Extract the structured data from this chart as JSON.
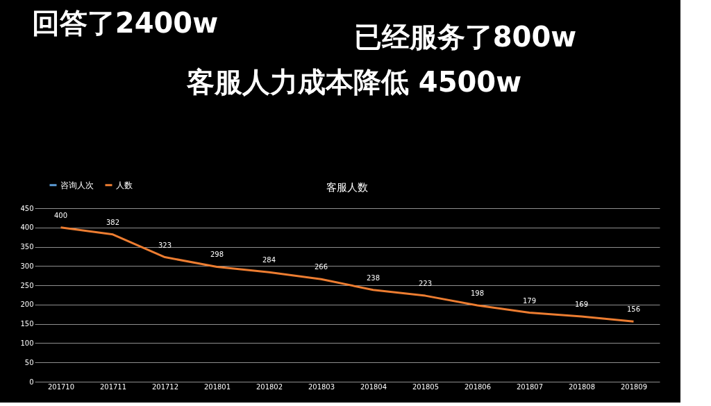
{
  "chart_data": {
    "type": "line",
    "title": "客服人数",
    "annotations": [
      "回答了2400w",
      "已经服务了800w",
      "客服人力成本降低 4500w"
    ],
    "categories": [
      "201710",
      "201711",
      "201712",
      "201801",
      "201802",
      "201803",
      "201804",
      "201805",
      "201806",
      "201807",
      "201808",
      "201809"
    ],
    "series": [
      {
        "name": "咨询人次",
        "color": "#5b9bd5",
        "values": [
          null,
          null,
          null,
          null,
          null,
          null,
          null,
          null,
          null,
          null,
          null,
          null
        ]
      },
      {
        "name": "人数",
        "color": "#ed7d31",
        "values": [
          400,
          382,
          323,
          298,
          284,
          266,
          238,
          223,
          198,
          179,
          169,
          156
        ]
      }
    ],
    "ylim": [
      0,
      450
    ],
    "yticks": [
      0,
      50,
      100,
      150,
      200,
      250,
      300,
      350,
      400,
      450
    ],
    "grid": "y",
    "legend": "top left",
    "data_labels": true,
    "marker": "none",
    "line_style": "solid"
  }
}
